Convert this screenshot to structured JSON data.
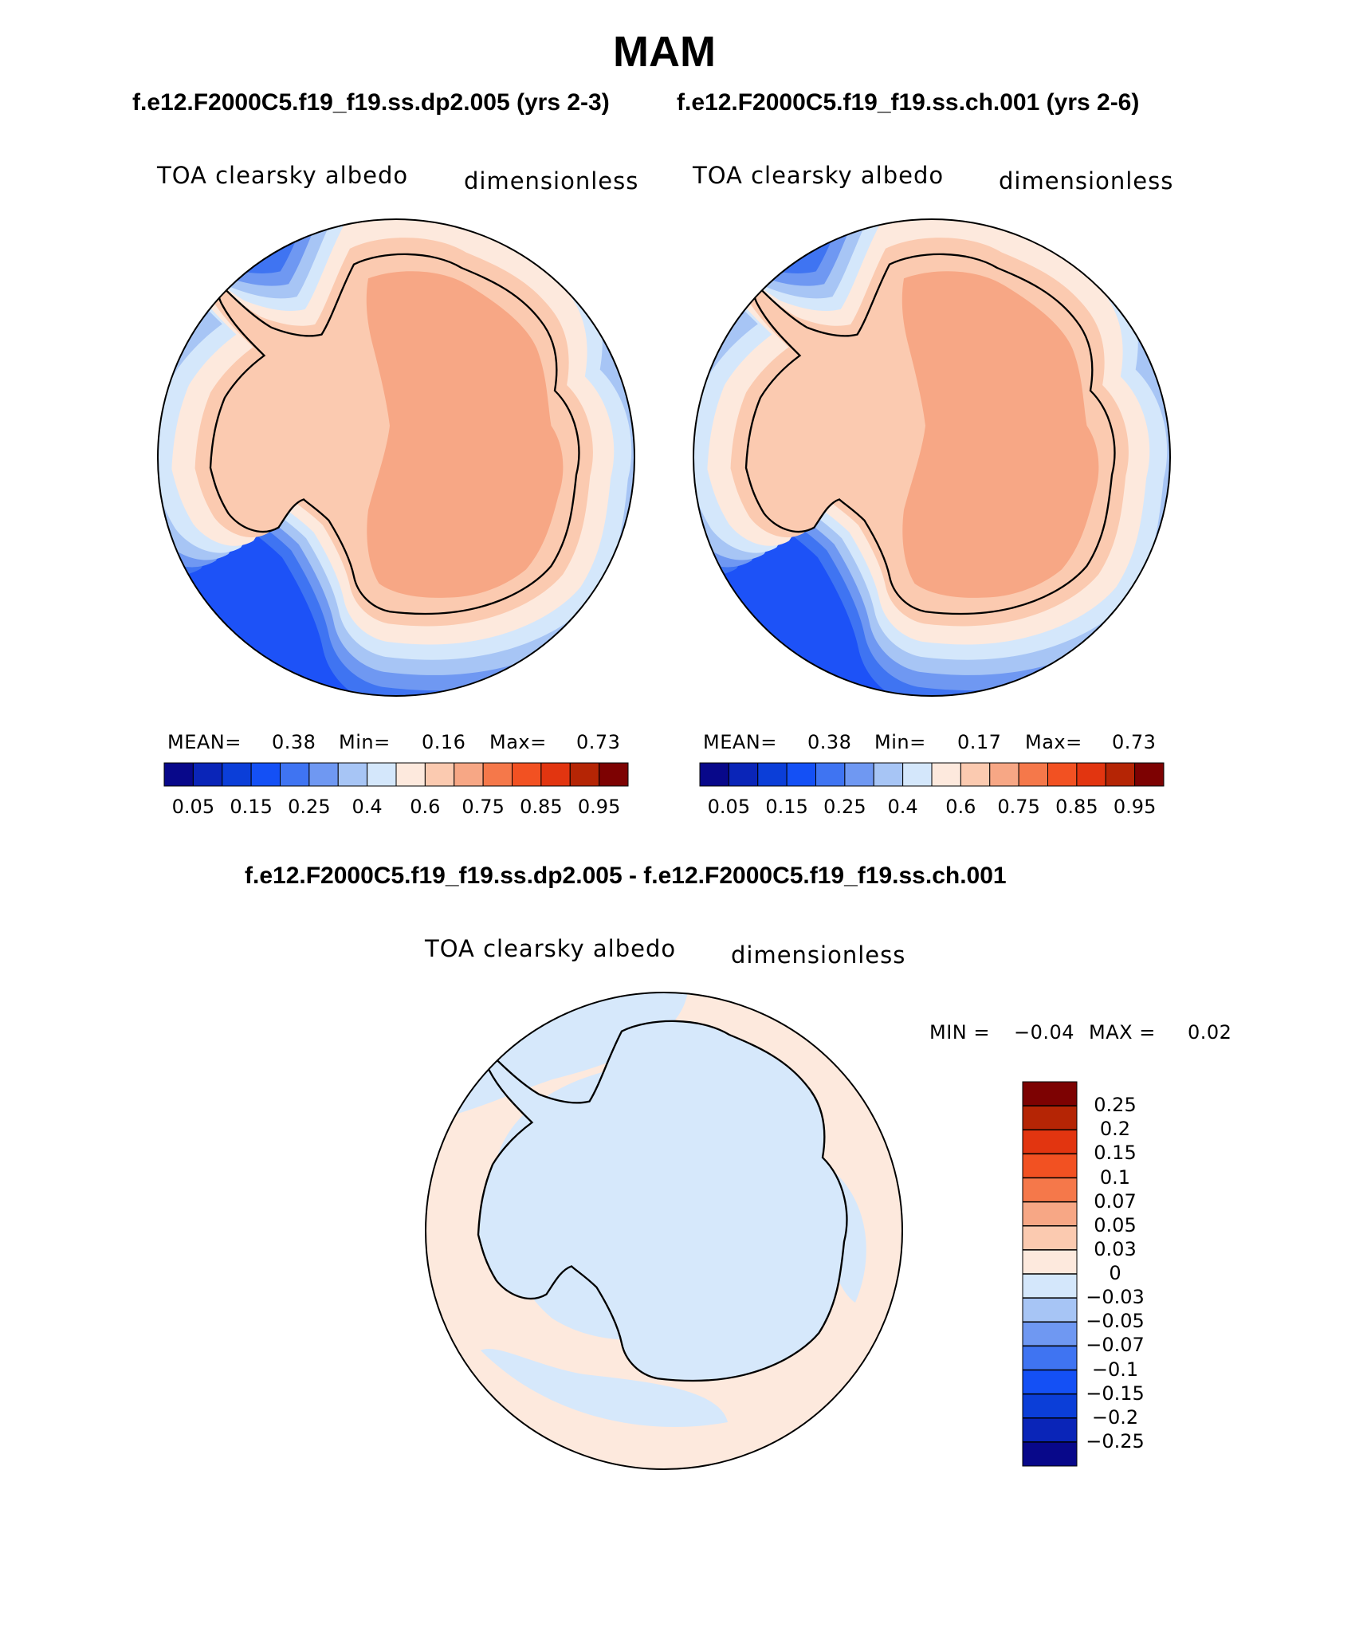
{
  "page": {
    "season": "MAM",
    "case1_header": "f.e12.F2000C5.f19_f19.ss.dp2.005 (yrs 2-3)",
    "case2_header": "f.e12.F2000C5.f19_f19.ss.ch.001 (yrs 2-6)",
    "diff_header": "f.e12.F2000C5.f19_f19.ss.dp2.005 - f.e12.F2000C5.f19_f19.ss.ch.001"
  },
  "panels": [
    {
      "variable": "TOA clearsky albedo",
      "units": "dimensionless",
      "mean_label": "MEAN=",
      "mean_value": "0.38",
      "min_label": "Min=",
      "min_value": "0.16",
      "max_label": "Max=",
      "max_value": "0.73"
    },
    {
      "variable": "TOA clearsky albedo",
      "units": "dimensionless",
      "mean_label": "MEAN=",
      "mean_value": "0.38",
      "min_label": "Min=",
      "min_value": "0.17",
      "max_label": "Max=",
      "max_value": "0.73"
    }
  ],
  "diff_panel": {
    "variable": "TOA clearsky albedo",
    "units": "dimensionless",
    "min_label": "MIN =",
    "min_value": "−0.04",
    "max_label": "MAX =",
    "max_value": "0.02"
  },
  "colorbar_abs": {
    "colors": [
      "#08088a",
      "#0a25b8",
      "#0b3ed8",
      "#1450f5",
      "#3f74f2",
      "#6f98f2",
      "#a7c5f5",
      "#d4e7fb",
      "#fde9dd",
      "#fbcab0",
      "#f7a785",
      "#f5784a",
      "#f25122",
      "#e23510",
      "#b52505",
      "#7d0202"
    ],
    "tick_labels": [
      "0.05",
      "0.15",
      "0.25",
      "0.4",
      "0.6",
      "0.75",
      "0.85",
      "0.95"
    ]
  },
  "colorbar_diff": {
    "colors": [
      "#7d0202",
      "#b52505",
      "#e23510",
      "#f25122",
      "#f5784a",
      "#f7a785",
      "#fbcab0",
      "#fde9dd",
      "#d4e7fb",
      "#a7c5f5",
      "#6f98f2",
      "#3f74f2",
      "#1450f5",
      "#0b3ed8",
      "#0a25b8",
      "#08088a"
    ],
    "tick_labels": [
      "0.25",
      "0.2",
      "0.15",
      "0.1",
      "0.07",
      "0.05",
      "0.03",
      "0",
      "−0.03",
      "−0.05",
      "−0.07",
      "−0.1",
      "−0.15",
      "−0.2",
      "−0.25"
    ]
  },
  "map_colors": {
    "ocean_far": "#1d52f7",
    "zone_1": "#3f74f2",
    "zone_2": "#6f98f2",
    "zone_3": "#a7c5f5",
    "zone_4": "#d4e7fb",
    "zone_5": "#fde9dd",
    "land_low": "#fbcab0",
    "land_high": "#f7a785",
    "diff_pos": "#fde9dd",
    "diff_neg": "#d6e8fb",
    "coast": "#000000"
  }
}
